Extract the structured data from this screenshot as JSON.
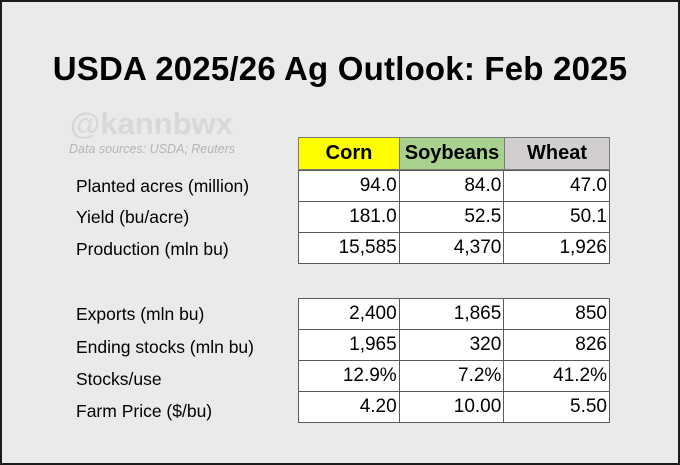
{
  "title": "USDA 2025/26 Ag Outlook: Feb 2025",
  "watermark": "@kannbwx",
  "sources": "Data sources: USDA; Reuters",
  "columns": [
    "Corn",
    "Soybeans",
    "Wheat"
  ],
  "column_colors": {
    "Corn": "#ffff00",
    "Soybeans": "#a9d18e",
    "Wheat": "#d0cece"
  },
  "section1": {
    "rows": [
      {
        "label": "Planted acres (million)",
        "values": [
          "94.0",
          "84.0",
          "47.0"
        ]
      },
      {
        "label": "Yield (bu/acre)",
        "values": [
          "181.0",
          "52.5",
          "50.1"
        ]
      },
      {
        "label": "Production (mln bu)",
        "values": [
          "15,585",
          "4,370",
          "1,926"
        ]
      }
    ]
  },
  "section2": {
    "rows": [
      {
        "label": "Exports  (mln bu)",
        "values": [
          "2,400",
          "1,865",
          "850"
        ]
      },
      {
        "label": "Ending stocks (mln bu)",
        "values": [
          "1,965",
          "320",
          "826"
        ]
      },
      {
        "label": "Stocks/use",
        "values": [
          "12.9%",
          "7.2%",
          "41.2%"
        ]
      },
      {
        "label": "Farm Price ($/bu)",
        "values": [
          "4.20",
          "10.00",
          "5.50"
        ]
      }
    ]
  }
}
